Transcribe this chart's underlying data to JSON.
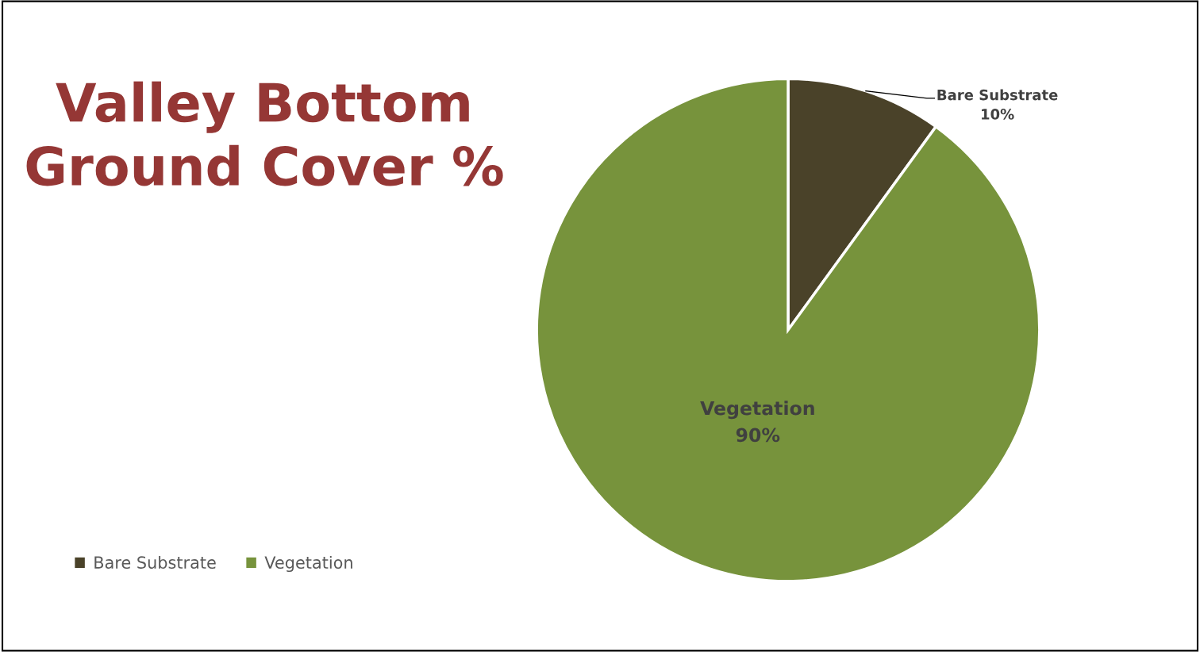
{
  "chart_data": {
    "type": "pie",
    "title": "Valley Bottom\nGround Cover %",
    "categories": [
      "Bare Substrate",
      "Vegetation"
    ],
    "values": [
      10,
      90
    ],
    "colors": [
      "#4a4229",
      "#77933c"
    ],
    "value_labels": [
      "10%",
      "90%"
    ],
    "legend": "bottom left"
  }
}
